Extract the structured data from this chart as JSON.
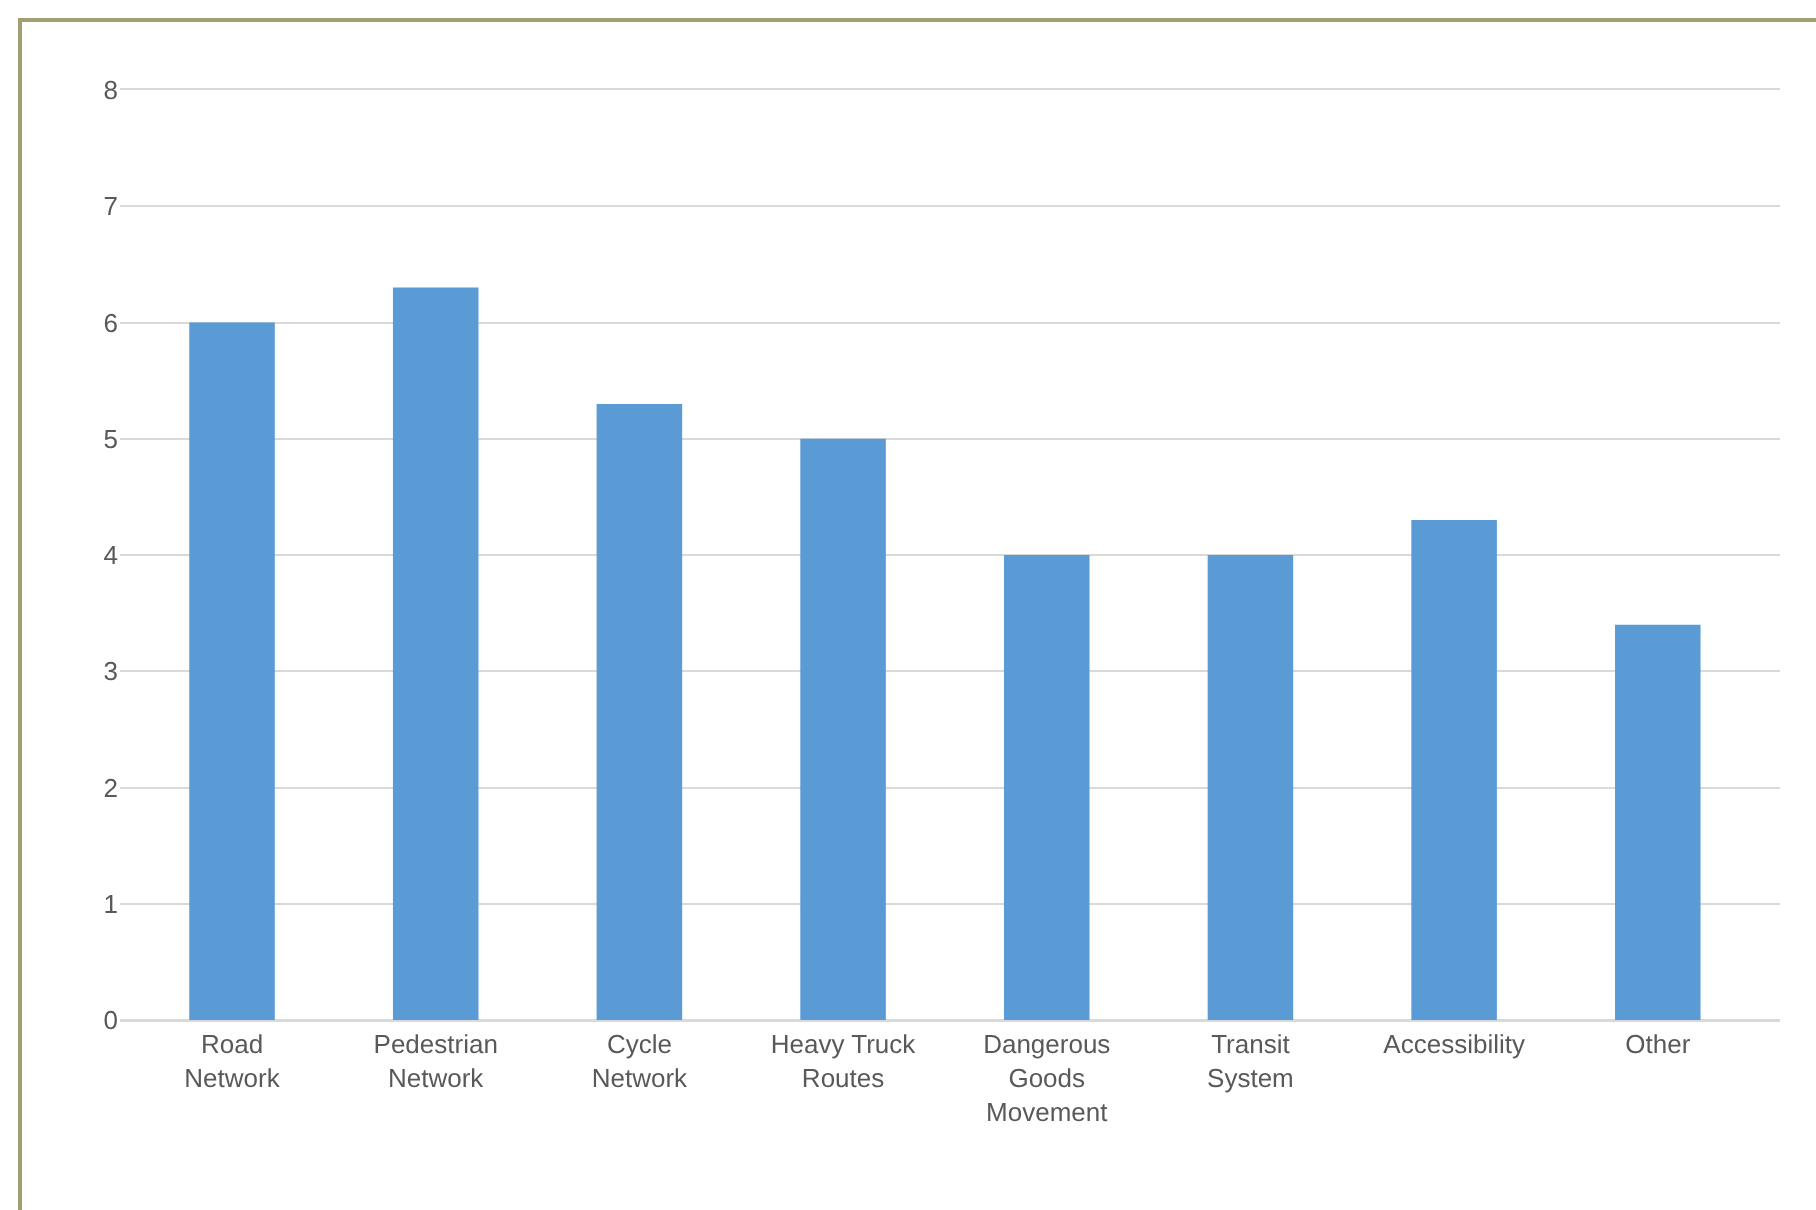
{
  "chart_data": {
    "type": "bar",
    "categories": [
      "Road Network",
      "Pedestrian Network",
      "Cycle Network",
      "Heavy Truck Routes",
      "Dangerous Goods Movement",
      "Transit System",
      "Accessibility",
      "Other"
    ],
    "values": [
      6.0,
      6.3,
      5.3,
      5.0,
      4.0,
      4.0,
      4.3,
      3.4
    ],
    "color": "#5b9bd5",
    "ylim": [
      0,
      8
    ],
    "yticks": [
      0,
      1,
      2,
      3,
      4,
      5,
      6,
      7,
      8
    ],
    "grid": "y"
  }
}
